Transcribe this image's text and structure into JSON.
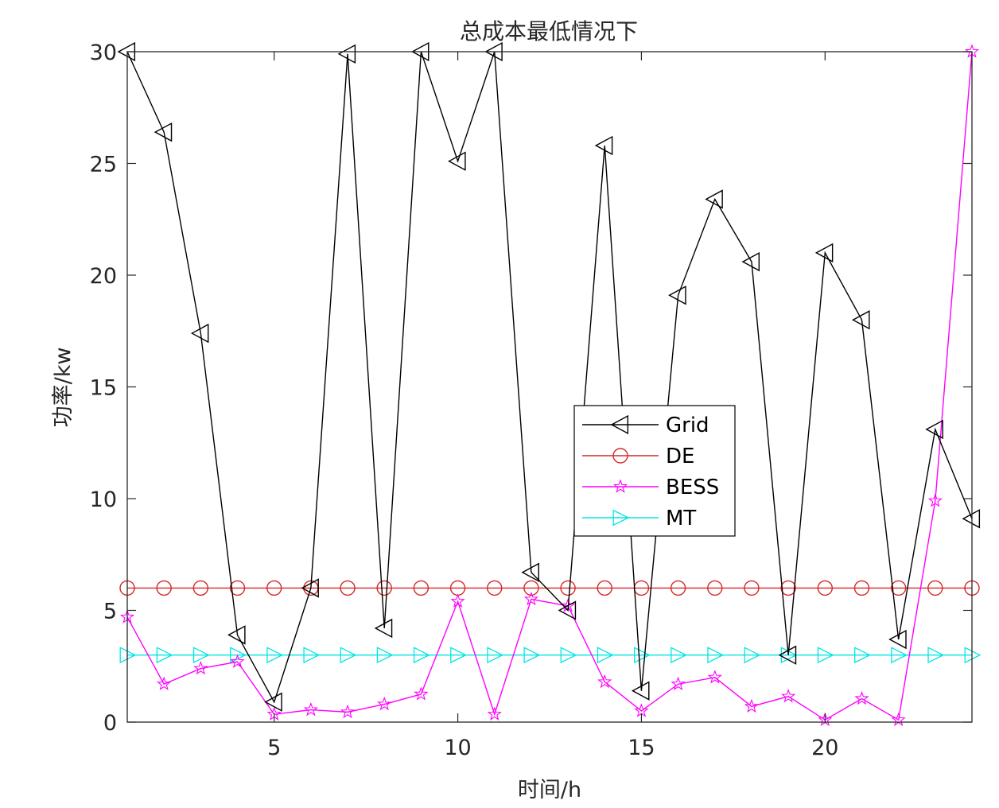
{
  "chart_data": {
    "type": "line",
    "title": "总成本最低情况下",
    "xlabel": "时间/h",
    "ylabel": "功率/kw",
    "xlim": [
      1,
      24
    ],
    "ylim": [
      0,
      30
    ],
    "xticks": [
      5,
      10,
      15,
      20
    ],
    "yticks": [
      0,
      5,
      10,
      15,
      20,
      25,
      30
    ],
    "x": [
      1,
      2,
      3,
      4,
      5,
      6,
      7,
      8,
      9,
      10,
      11,
      12,
      13,
      14,
      15,
      16,
      17,
      18,
      19,
      20,
      21,
      22,
      23,
      24
    ],
    "grid": false,
    "legend_position": "center-right",
    "series": [
      {
        "name": "Grid",
        "color": "#000000",
        "marker": "triangle-left",
        "values": [
          30,
          26.4,
          17.4,
          3.9,
          0.9,
          6.0,
          29.9,
          4.2,
          30,
          25.1,
          30,
          6.7,
          5.0,
          25.8,
          1.4,
          19.1,
          23.4,
          20.6,
          3.0,
          21.0,
          18.0,
          3.7,
          13.1,
          9.1
        ]
      },
      {
        "name": "DE",
        "color": "#d62728",
        "marker": "circle",
        "values": [
          6,
          6,
          6,
          6,
          6,
          6,
          6,
          6,
          6,
          6,
          6,
          6,
          6,
          6,
          6,
          6,
          6,
          6,
          6,
          6,
          6,
          6,
          6,
          6
        ]
      },
      {
        "name": "BESS",
        "color": "#ff00ff",
        "marker": "star",
        "values": [
          4.7,
          1.7,
          2.4,
          2.7,
          0.35,
          0.55,
          0.45,
          0.8,
          1.25,
          5.4,
          0.35,
          5.5,
          5.2,
          1.8,
          0.5,
          1.7,
          2.0,
          0.7,
          1.15,
          0.1,
          1.05,
          0.1,
          9.9,
          30
        ]
      },
      {
        "name": "MT",
        "color": "#00e5e5",
        "marker": "triangle-right",
        "values": [
          3,
          3,
          3,
          3,
          3,
          3,
          3,
          3,
          3,
          3,
          3,
          3,
          3,
          3,
          3,
          3,
          3,
          3,
          3,
          3,
          3,
          3,
          3,
          3
        ]
      }
    ]
  }
}
